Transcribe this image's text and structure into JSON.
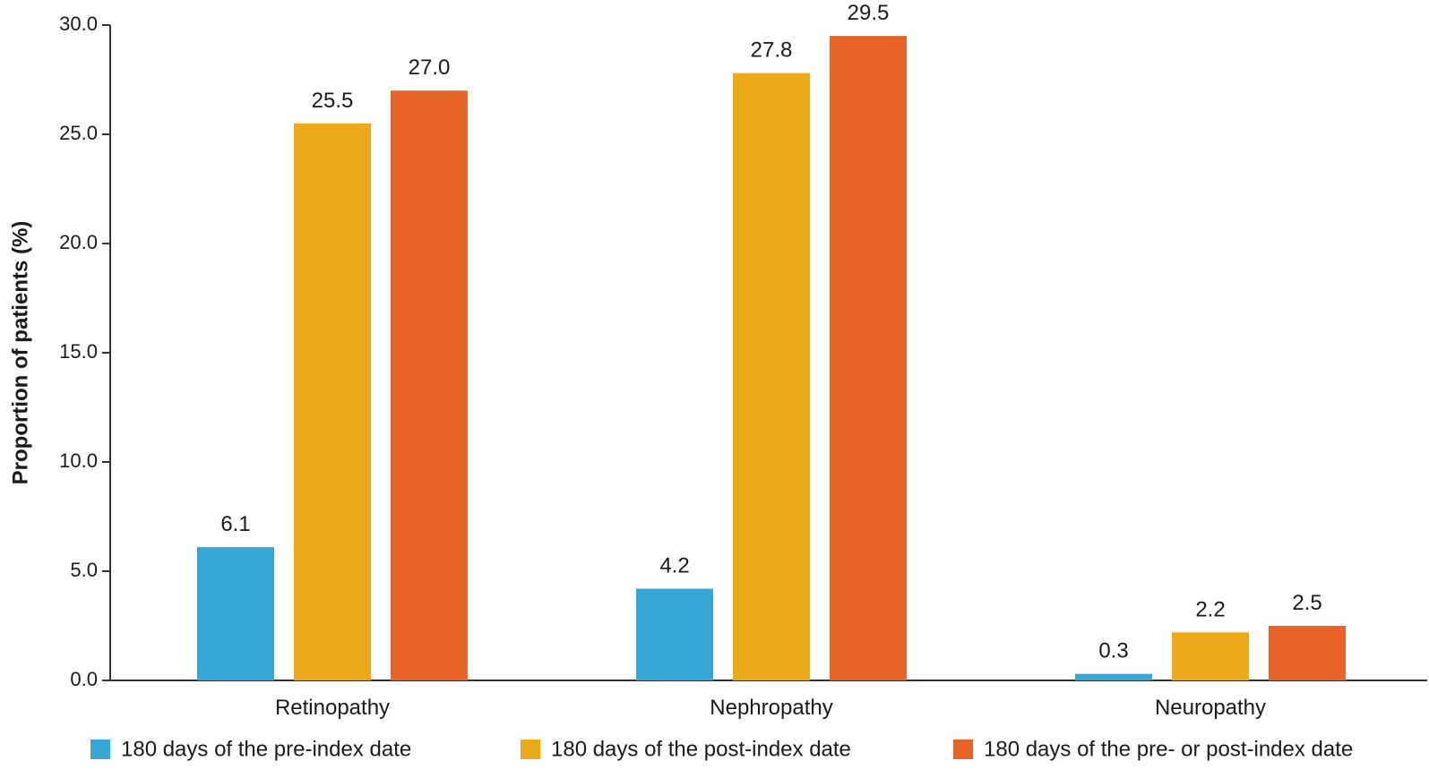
{
  "chart_data": {
    "type": "bar",
    "title": "",
    "xlabel": "",
    "ylabel": "Proportion of patients (%)",
    "ylim": [
      0,
      30
    ],
    "yticks": [
      0,
      5,
      10,
      15,
      20,
      25,
      30
    ],
    "ytick_labels": [
      "0.0",
      "5.0",
      "10.0",
      "15.0",
      "20.0",
      "25.0",
      "30.0"
    ],
    "categories": [
      "Retinopathy",
      "Nephropathy",
      "Neuropathy"
    ],
    "series": [
      {
        "name": "180 days of the pre-index date",
        "color": "#36a6d5",
        "values": [
          6.1,
          4.2,
          0.3
        ],
        "labels": [
          "6.1",
          "4.2",
          "0.3"
        ]
      },
      {
        "name": "180 days of the post-index date",
        "color": "#ecaa1b",
        "values": [
          25.5,
          27.8,
          2.2
        ],
        "labels": [
          "25.5",
          "27.8",
          "2.2"
        ]
      },
      {
        "name": "180 days of the pre- or post-index date",
        "color": "#e8652a",
        "values": [
          27.0,
          29.5,
          2.5
        ],
        "labels": [
          "27.0",
          "29.5",
          "2.5"
        ]
      }
    ],
    "legend_position": "bottom",
    "grid": false
  }
}
